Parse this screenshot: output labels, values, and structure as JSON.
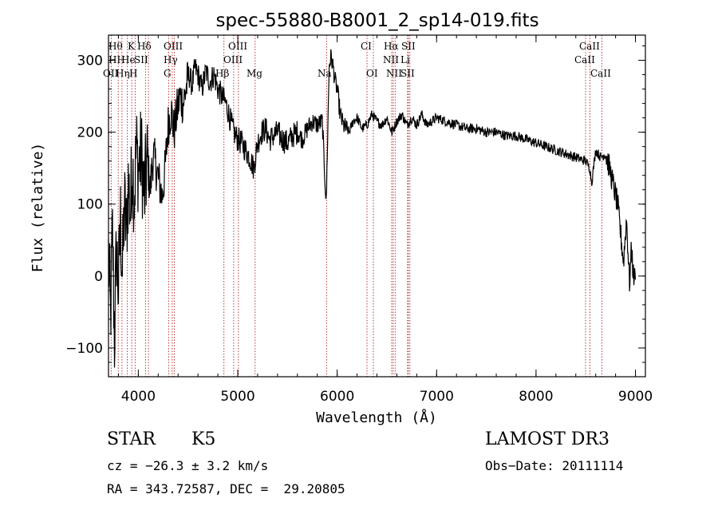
{
  "chart_data": {
    "type": "line",
    "title": "spec-55880-B8001_2_sp14-019.fits",
    "xlabel": "Wavelength (Å)",
    "ylabel": "Flux (relative)",
    "xlim": [
      3700,
      9100
    ],
    "ylim": [
      -140,
      335
    ],
    "x_ticks": [
      4000,
      5000,
      6000,
      7000,
      8000,
      9000
    ],
    "y_ticks": [
      -100,
      0,
      100,
      200,
      300
    ],
    "grid": false,
    "line_color": "#000000",
    "marker_color": "#b22222",
    "series": [
      {
        "x": [
          3700,
          3720,
          3740,
          3760,
          3780,
          3800,
          3820,
          3840,
          3860,
          3880,
          3900,
          3920,
          3940,
          3960,
          3980,
          4000,
          4030,
          4060,
          4090,
          4120,
          4150,
          4180,
          4210,
          4240,
          4270,
          4300,
          4330,
          4360,
          4390,
          4420,
          4450,
          4480,
          4510,
          4540,
          4570,
          4600,
          4640,
          4680,
          4720,
          4760,
          4800,
          4840,
          4880,
          4920,
          4960,
          5000,
          5040,
          5080,
          5120,
          5160,
          5200,
          5240,
          5280,
          5320,
          5360,
          5400,
          5450,
          5500,
          5550,
          5600,
          5650,
          5700,
          5750,
          5800,
          5850,
          5890,
          5900,
          5920,
          5940,
          5960,
          5980,
          6000,
          6030,
          6060,
          6090,
          6120,
          6160,
          6200,
          6250,
          6300,
          6350,
          6400,
          6450,
          6500,
          6550,
          6600,
          6650,
          6700,
          6750,
          6800,
          6850,
          6900,
          6950,
          7000,
          7100,
          7200,
          7300,
          7400,
          7500,
          7600,
          7700,
          7800,
          7900,
          8000,
          8100,
          8200,
          8300,
          8400,
          8500,
          8540,
          8560,
          8600,
          8650,
          8700,
          8740,
          8780,
          8820,
          8850,
          8880,
          8910,
          8940,
          8960,
          8980,
          9000
        ],
        "values": [
          30,
          -60,
          60,
          -90,
          40,
          -20,
          80,
          0,
          100,
          60,
          130,
          90,
          160,
          110,
          180,
          150,
          170,
          110,
          160,
          120,
          170,
          150,
          130,
          110,
          150,
          210,
          230,
          200,
          230,
          250,
          240,
          260,
          280,
          265,
          290,
          280,
          260,
          285,
          270,
          280,
          260,
          250,
          240,
          220,
          200,
          190,
          185,
          175,
          165,
          150,
          185,
          200,
          205,
          190,
          195,
          200,
          190,
          185,
          195,
          200,
          190,
          205,
          215,
          210,
          215,
          100,
          170,
          295,
          305,
          290,
          270,
          260,
          225,
          210,
          205,
          200,
          215,
          220,
          205,
          210,
          225,
          215,
          210,
          220,
          200,
          215,
          225,
          210,
          220,
          210,
          225,
          210,
          215,
          220,
          215,
          210,
          205,
          205,
          200,
          200,
          195,
          195,
          190,
          185,
          180,
          175,
          170,
          165,
          160,
          150,
          130,
          175,
          165,
          170,
          150,
          125,
          100,
          60,
          20,
          80,
          -10,
          40,
          0,
          -5
        ]
      }
    ],
    "lines": [
      {
        "label": "Hθ",
        "wavelength": 3798
      },
      {
        "label": "OII",
        "wavelength": 3727
      },
      {
        "label": "Hη",
        "wavelength": 3835
      },
      {
        "label": "HeI",
        "wavelength": 3889
      },
      {
        "label": "K",
        "wavelength": 3934
      },
      {
        "label": "H",
        "wavelength": 3968
      },
      {
        "label": "SII",
        "wavelength": 4072
      },
      {
        "label": "Hδ",
        "wavelength": 4102
      },
      {
        "label": "G",
        "wavelength": 4305
      },
      {
        "label": "Hγ",
        "wavelength": 4341
      },
      {
        "label": "OIII",
        "wavelength": 4363
      },
      {
        "label": "Hβ",
        "wavelength": 4861
      },
      {
        "label": "OIII",
        "wavelength": 4959
      },
      {
        "label": "OIII",
        "wavelength": 5007
      },
      {
        "label": "Mg",
        "wavelength": 5175
      },
      {
        "label": "Na",
        "wavelength": 5893
      },
      {
        "label": "CI",
        "wavelength": 6300
      },
      {
        "label": "OI",
        "wavelength": 6364
      },
      {
        "label": "NII",
        "wavelength": 6548
      },
      {
        "label": "Hα",
        "wavelength": 6563
      },
      {
        "label": "NII",
        "wavelength": 6583
      },
      {
        "label": "Li",
        "wavelength": 6708
      },
      {
        "label": "SII",
        "wavelength": 6716
      },
      {
        "label": "SII",
        "wavelength": 6731
      },
      {
        "label": "CaII",
        "wavelength": 8498
      },
      {
        "label": "CaII",
        "wavelength": 8542
      },
      {
        "label": "CaII",
        "wavelength": 8662
      }
    ],
    "label_rows": [
      [
        "Hθ",
        "K",
        "Hδ",
        "OIII",
        "OIII",
        "CI",
        "Hα",
        "SII",
        "CaII"
      ],
      [
        "HH",
        "He",
        "SII",
        "Hγ",
        "OIII",
        "NII",
        "Li",
        "CaII"
      ],
      [
        "OII",
        "Hη",
        "H",
        "G",
        "Hβ",
        "Mg",
        "Na",
        "OI",
        "NII",
        "SII",
        "CaII"
      ]
    ]
  },
  "info": {
    "object_class": "STAR",
    "subclass": "K5",
    "survey": "LAMOST DR3",
    "cz": "cz = −26.3 ± 3.2 km/s",
    "obs_date": "Obs−Date: 20111114",
    "radec": "RA = 343.72587, DEC =  29.20805"
  }
}
